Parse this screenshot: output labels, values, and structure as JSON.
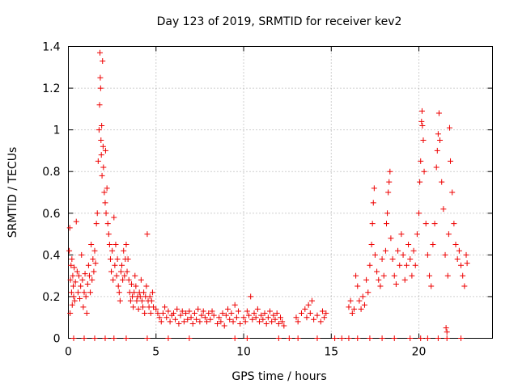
{
  "chart_data": {
    "type": "scatter",
    "title": "Day 123 of 2019, SRMTID for receiver kev2",
    "xlabel": "GPS time / hours",
    "ylabel": "SRMTID / TECUs",
    "xlim": [
      0,
      24.2
    ],
    "ylim": [
      0,
      1.4
    ],
    "xticks": [
      0,
      5,
      10,
      15,
      20
    ],
    "yticks": [
      0,
      0.2,
      0.4,
      0.6,
      0.8,
      1,
      1.2,
      1.4
    ],
    "xtick_labels": [
      "0",
      "5",
      "10",
      "15",
      "20"
    ],
    "ytick_labels": [
      "0",
      "0.2",
      "0.4",
      "0.6",
      "0.8",
      "1",
      "1.2",
      "1.4"
    ],
    "grid": true,
    "marker": "+",
    "color": "#ee0000",
    "series": [
      {
        "name": "SRMTID",
        "points": [
          [
            0.05,
            0.42
          ],
          [
            0.08,
            0.53
          ],
          [
            0.1,
            0.12
          ],
          [
            0.12,
            0.28
          ],
          [
            0.15,
            0.35
          ],
          [
            0.18,
            0.22
          ],
          [
            0.2,
            0.38
          ],
          [
            0.22,
            0.16
          ],
          [
            0.25,
            0.3
          ],
          [
            0.28,
            0.25
          ],
          [
            0.3,
            0.2
          ],
          [
            0.33,
            0.34
          ],
          [
            0.36,
            0.18
          ],
          [
            0.4,
            0.27
          ],
          [
            0.45,
            0.56
          ],
          [
            0.5,
            0.32
          ],
          [
            0.55,
            0.22
          ],
          [
            0.6,
            0.3
          ],
          [
            0.65,
            0.19
          ],
          [
            0.7,
            0.25
          ],
          [
            0.75,
            0.4
          ],
          [
            0.8,
            0.28
          ],
          [
            0.85,
            0.15
          ],
          [
            0.9,
            0.22
          ],
          [
            0.95,
            0.31
          ],
          [
            1.0,
            0.2
          ],
          [
            1.05,
            0.12
          ],
          [
            1.1,
            0.26
          ],
          [
            1.15,
            0.35
          ],
          [
            1.2,
            0.3
          ],
          [
            1.25,
            0.22
          ],
          [
            1.3,
            0.45
          ],
          [
            1.35,
            0.28
          ],
          [
            1.4,
            0.38
          ],
          [
            1.45,
            0.32
          ],
          [
            1.5,
            0.42
          ],
          [
            1.55,
            0.36
          ],
          [
            1.6,
            0.55
          ],
          [
            1.65,
            0.6
          ],
          [
            1.7,
            0.85
          ],
          [
            1.75,
            1.0
          ],
          [
            1.78,
            1.12
          ],
          [
            1.8,
            1.37
          ],
          [
            1.82,
            1.25
          ],
          [
            1.84,
            1.2
          ],
          [
            1.86,
            0.95
          ],
          [
            1.88,
            0.88
          ],
          [
            1.9,
            1.02
          ],
          [
            1.92,
            0.78
          ],
          [
            1.95,
            1.33
          ],
          [
            1.98,
            0.92
          ],
          [
            2.0,
            0.82
          ],
          [
            2.05,
            0.7
          ],
          [
            2.1,
            0.65
          ],
          [
            2.12,
            0.9
          ],
          [
            2.15,
            0.6
          ],
          [
            2.2,
            0.72
          ],
          [
            2.25,
            0.55
          ],
          [
            2.3,
            0.5
          ],
          [
            2.35,
            0.45
          ],
          [
            2.4,
            0.38
          ],
          [
            2.45,
            0.32
          ],
          [
            2.5,
            0.42
          ],
          [
            2.55,
            0.28
          ],
          [
            2.6,
            0.58
          ],
          [
            2.65,
            0.35
          ],
          [
            2.7,
            0.45
          ],
          [
            2.75,
            0.3
          ],
          [
            2.8,
            0.38
          ],
          [
            2.85,
            0.25
          ],
          [
            2.9,
            0.22
          ],
          [
            2.95,
            0.18
          ],
          [
            3.0,
            0.32
          ],
          [
            3.05,
            0.35
          ],
          [
            3.1,
            0.28
          ],
          [
            3.15,
            0.42
          ],
          [
            3.2,
            0.3
          ],
          [
            3.25,
            0.38
          ],
          [
            3.3,
            0.45
          ],
          [
            3.35,
            0.32
          ],
          [
            3.4,
            0.38
          ],
          [
            3.45,
            0.28
          ],
          [
            3.5,
            0.22
          ],
          [
            3.55,
            0.18
          ],
          [
            3.6,
            0.26
          ],
          [
            3.65,
            0.2
          ],
          [
            3.7,
            0.15
          ],
          [
            3.75,
            0.22
          ],
          [
            3.8,
            0.3
          ],
          [
            3.85,
            0.25
          ],
          [
            3.9,
            0.18
          ],
          [
            3.95,
            0.2
          ],
          [
            4.0,
            0.14
          ],
          [
            4.05,
            0.22
          ],
          [
            4.1,
            0.2
          ],
          [
            4.15,
            0.28
          ],
          [
            4.2,
            0.18
          ],
          [
            4.25,
            0.15
          ],
          [
            4.3,
            0.22
          ],
          [
            4.35,
            0.12
          ],
          [
            4.4,
            0.2
          ],
          [
            4.45,
            0.25
          ],
          [
            4.5,
            0.5
          ],
          [
            4.55,
            0.18
          ],
          [
            4.6,
            0.15
          ],
          [
            4.65,
            0.2
          ],
          [
            4.7,
            0.12
          ],
          [
            4.75,
            0.18
          ],
          [
            4.8,
            0.22
          ],
          [
            4.85,
            0.15
          ],
          [
            5.0,
            0.14
          ],
          [
            5.1,
            0.12
          ],
          [
            5.2,
            0.1
          ],
          [
            5.3,
            0.08
          ],
          [
            5.4,
            0.12
          ],
          [
            5.5,
            0.15
          ],
          [
            5.6,
            0.1
          ],
          [
            5.7,
            0.13
          ],
          [
            5.8,
            0.08
          ],
          [
            5.9,
            0.11
          ],
          [
            6.0,
            0.12
          ],
          [
            6.1,
            0.09
          ],
          [
            6.2,
            0.14
          ],
          [
            6.3,
            0.07
          ],
          [
            6.4,
            0.11
          ],
          [
            6.5,
            0.13
          ],
          [
            6.6,
            0.08
          ],
          [
            6.7,
            0.12
          ],
          [
            6.8,
            0.09
          ],
          [
            6.9,
            0.13
          ],
          [
            7.0,
            0.1
          ],
          [
            7.1,
            0.07
          ],
          [
            7.2,
            0.12
          ],
          [
            7.3,
            0.09
          ],
          [
            7.4,
            0.14
          ],
          [
            7.5,
            0.08
          ],
          [
            7.6,
            0.11
          ],
          [
            7.7,
            0.13
          ],
          [
            7.8,
            0.1
          ],
          [
            7.9,
            0.08
          ],
          [
            8.0,
            0.12
          ],
          [
            8.1,
            0.09
          ],
          [
            8.2,
            0.13
          ],
          [
            8.3,
            0.11
          ],
          [
            8.5,
            0.07
          ],
          [
            8.6,
            0.1
          ],
          [
            8.7,
            0.08
          ],
          [
            8.8,
            0.12
          ],
          [
            8.9,
            0.06
          ],
          [
            9.0,
            0.11
          ],
          [
            9.1,
            0.14
          ],
          [
            9.2,
            0.09
          ],
          [
            9.3,
            0.12
          ],
          [
            9.4,
            0.08
          ],
          [
            9.5,
            0.16
          ],
          [
            9.6,
            0.1
          ],
          [
            9.7,
            0.13
          ],
          [
            9.8,
            0.07
          ],
          [
            10.0,
            0.1
          ],
          [
            10.1,
            0.08
          ],
          [
            10.2,
            0.13
          ],
          [
            10.3,
            0.11
          ],
          [
            10.4,
            0.2
          ],
          [
            10.5,
            0.09
          ],
          [
            10.6,
            0.12
          ],
          [
            10.7,
            0.1
          ],
          [
            10.8,
            0.14
          ],
          [
            10.9,
            0.08
          ],
          [
            11.0,
            0.11
          ],
          [
            11.1,
            0.09
          ],
          [
            11.2,
            0.12
          ],
          [
            11.3,
            0.07
          ],
          [
            11.4,
            0.1
          ],
          [
            11.5,
            0.13
          ],
          [
            11.6,
            0.08
          ],
          [
            11.7,
            0.11
          ],
          [
            11.8,
            0.09
          ],
          [
            11.9,
            0.12
          ],
          [
            12.0,
            0.07
          ],
          [
            12.1,
            0.1
          ],
          [
            12.2,
            0.08
          ],
          [
            12.3,
            0.06
          ],
          [
            13.0,
            0.1
          ],
          [
            13.1,
            0.08
          ],
          [
            13.3,
            0.12
          ],
          [
            13.5,
            0.14
          ],
          [
            13.6,
            0.1
          ],
          [
            13.7,
            0.16
          ],
          [
            13.8,
            0.12
          ],
          [
            13.9,
            0.18
          ],
          [
            14.0,
            0.09
          ],
          [
            14.2,
            0.11
          ],
          [
            14.4,
            0.08
          ],
          [
            14.5,
            0.13
          ],
          [
            14.6,
            0.1
          ],
          [
            14.7,
            0.12
          ],
          [
            16.0,
            0.15
          ],
          [
            16.1,
            0.18
          ],
          [
            16.2,
            0.12
          ],
          [
            16.3,
            0.14
          ],
          [
            16.4,
            0.3
          ],
          [
            16.5,
            0.25
          ],
          [
            16.6,
            0.18
          ],
          [
            16.7,
            0.14
          ],
          [
            16.8,
            0.2
          ],
          [
            16.9,
            0.16
          ],
          [
            17.0,
            0.28
          ],
          [
            17.1,
            0.22
          ],
          [
            17.2,
            0.35
          ],
          [
            17.3,
            0.45
          ],
          [
            17.35,
            0.55
          ],
          [
            17.4,
            0.65
          ],
          [
            17.45,
            0.72
          ],
          [
            17.5,
            0.4
          ],
          [
            17.6,
            0.32
          ],
          [
            17.7,
            0.28
          ],
          [
            17.8,
            0.25
          ],
          [
            17.9,
            0.38
          ],
          [
            18.0,
            0.3
          ],
          [
            18.1,
            0.42
          ],
          [
            18.15,
            0.55
          ],
          [
            18.2,
            0.6
          ],
          [
            18.25,
            0.7
          ],
          [
            18.3,
            0.75
          ],
          [
            18.35,
            0.8
          ],
          [
            18.4,
            0.48
          ],
          [
            18.5,
            0.38
          ],
          [
            18.6,
            0.3
          ],
          [
            18.7,
            0.26
          ],
          [
            18.8,
            0.42
          ],
          [
            18.9,
            0.35
          ],
          [
            19.0,
            0.5
          ],
          [
            19.1,
            0.4
          ],
          [
            19.2,
            0.28
          ],
          [
            19.3,
            0.35
          ],
          [
            19.4,
            0.45
          ],
          [
            19.5,
            0.38
          ],
          [
            19.6,
            0.3
          ],
          [
            19.7,
            0.42
          ],
          [
            19.8,
            0.35
          ],
          [
            19.9,
            0.5
          ],
          [
            20.0,
            0.6
          ],
          [
            20.05,
            0.75
          ],
          [
            20.1,
            0.85
          ],
          [
            20.15,
            1.04
          ],
          [
            20.18,
            1.09
          ],
          [
            20.2,
            1.02
          ],
          [
            20.25,
            0.95
          ],
          [
            20.3,
            0.8
          ],
          [
            20.4,
            0.55
          ],
          [
            20.5,
            0.4
          ],
          [
            20.6,
            0.3
          ],
          [
            20.7,
            0.25
          ],
          [
            20.8,
            0.45
          ],
          [
            20.9,
            0.55
          ],
          [
            21.0,
            0.82
          ],
          [
            21.05,
            0.9
          ],
          [
            21.1,
            0.98
          ],
          [
            21.15,
            1.08
          ],
          [
            21.2,
            0.95
          ],
          [
            21.3,
            0.75
          ],
          [
            21.4,
            0.62
          ],
          [
            21.5,
            0.4
          ],
          [
            21.55,
            0.05
          ],
          [
            21.6,
            0.03
          ],
          [
            21.65,
            0.3
          ],
          [
            21.7,
            0.5
          ],
          [
            21.75,
            1.01
          ],
          [
            21.8,
            0.85
          ],
          [
            21.9,
            0.7
          ],
          [
            22.0,
            0.55
          ],
          [
            22.1,
            0.45
          ],
          [
            22.2,
            0.38
          ],
          [
            22.3,
            0.42
          ],
          [
            22.4,
            0.35
          ],
          [
            22.5,
            0.3
          ],
          [
            22.6,
            0.25
          ],
          [
            22.7,
            0.4
          ],
          [
            22.75,
            0.36
          ],
          [
            0.3,
            0.0
          ],
          [
            0.9,
            0.0
          ],
          [
            1.5,
            0.0
          ],
          [
            2.1,
            0.0
          ],
          [
            2.6,
            0.0
          ],
          [
            3.3,
            0.0
          ],
          [
            4.5,
            0.0
          ],
          [
            5.7,
            0.0
          ],
          [
            6.9,
            0.0
          ],
          [
            9.5,
            0.0
          ],
          [
            10.2,
            0.0
          ],
          [
            12.0,
            0.0
          ],
          [
            12.6,
            0.0
          ],
          [
            13.1,
            0.0
          ],
          [
            14.2,
            0.0
          ],
          [
            15.2,
            0.0
          ],
          [
            15.6,
            0.0
          ],
          [
            16.0,
            0.0
          ],
          [
            16.5,
            0.0
          ],
          [
            17.2,
            0.0
          ],
          [
            17.9,
            0.0
          ],
          [
            18.6,
            0.0
          ],
          [
            19.5,
            0.0
          ],
          [
            20.1,
            0.0
          ],
          [
            20.5,
            0.0
          ],
          [
            21.1,
            0.0
          ],
          [
            21.6,
            0.0
          ],
          [
            22.4,
            0.0
          ]
        ]
      }
    ]
  }
}
